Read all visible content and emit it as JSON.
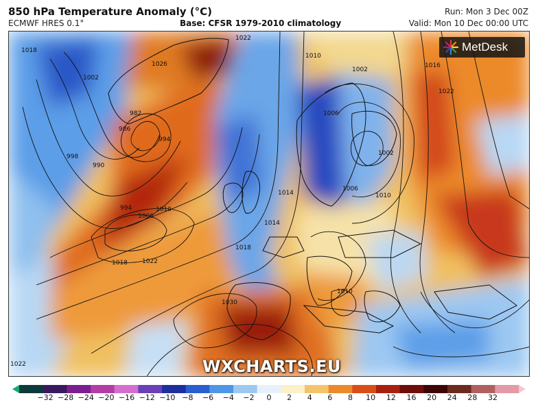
{
  "header": {
    "title": "850 hPa Temperature Anomaly (°C)",
    "model": "ECMWF HRES 0.1°",
    "base": "Base: CFSR 1979-2010 climatology",
    "run": "Run: Mon 3 Dec 00Z",
    "valid": "Valid: Mon 10 Dec 00:00 UTC"
  },
  "logo": {
    "text": "MetDesk",
    "icon": "metdesk-star-icon"
  },
  "watermark": "WXCHARTS.EU",
  "colorbar": {
    "ticks": [
      "−32",
      "−28",
      "−24",
      "−20",
      "−16",
      "−12",
      "−10",
      "−8",
      "−6",
      "−4",
      "−2",
      "0",
      "2",
      "4",
      "6",
      "8",
      "10",
      "12",
      "16",
      "20",
      "24",
      "28",
      "32"
    ],
    "colors": [
      "#16a878",
      "#0d3b3b",
      "#3a1a5e",
      "#7a1f8f",
      "#b33ca6",
      "#d46fcf",
      "#6a3fb8",
      "#1d2e9e",
      "#2a5fd1",
      "#4e97e6",
      "#9cc8f2",
      "#e8f1fb",
      "#fbf1c8",
      "#f4c46a",
      "#ec8a2a",
      "#d94d16",
      "#a8200e",
      "#6e0d0a",
      "#3d0606",
      "#6b2b1f",
      "#b06060",
      "#e39aa6",
      "#f3c8d4"
    ]
  },
  "isobars": [
    "998",
    "1002",
    "990",
    "986",
    "982",
    "994",
    "994",
    "1006",
    "1010",
    "1018",
    "1022",
    "1026",
    "1030",
    "1014",
    "1010",
    "1006",
    "1010",
    "1018",
    "1014",
    "1018",
    "1022",
    "1002",
    "1002",
    "1006",
    "1010",
    "1016",
    "1022",
    "1022"
  ]
}
